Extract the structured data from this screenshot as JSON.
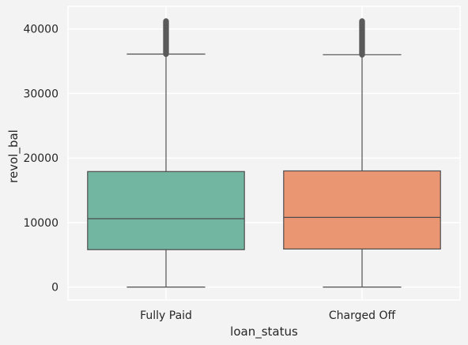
{
  "chart_data": {
    "type": "box",
    "xlabel": "loan_status",
    "ylabel": "revol_bal",
    "ylim": [
      -2000,
      43500
    ],
    "yticks": [
      0,
      10000,
      20000,
      30000,
      40000
    ],
    "grid": true,
    "categories": [
      "Fully Paid",
      "Charged Off"
    ],
    "boxes": [
      {
        "category": "Fully Paid",
        "whisker_low": 0,
        "q1": 5800,
        "median": 10600,
        "q3": 17900,
        "whisker_high": 36100,
        "outlier_min": 36100,
        "outlier_max": 41200,
        "color": "#72b6a1"
      },
      {
        "category": "Charged Off",
        "whisker_low": 0,
        "q1": 5900,
        "median": 10800,
        "q3": 18000,
        "whisker_high": 36000,
        "outlier_min": 36000,
        "outlier_max": 41200,
        "color": "#eb9673"
      }
    ],
    "colors": {
      "background": "#f3f3f3",
      "plot_background": "#f3f3f3",
      "grid": "#ffffff",
      "line": "#4d4d4d",
      "outlier": "#5a5a5a"
    }
  }
}
